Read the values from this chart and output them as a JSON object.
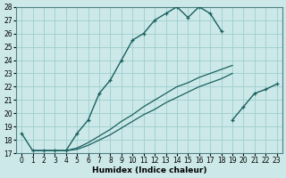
{
  "title": "",
  "xlabel": "Humidex (Indice chaleur)",
  "xlim": [
    -0.5,
    23.5
  ],
  "ylim": [
    17,
    28
  ],
  "background_color": "#cce8e8",
  "grid_color": "#9ecece",
  "line_color": "#1a6060",
  "lines": [
    {
      "x": [
        0,
        1,
        2,
        3,
        4,
        5,
        6,
        7,
        8,
        9,
        10,
        11,
        12,
        13,
        14,
        15,
        16,
        17,
        18
      ],
      "y": [
        18.5,
        17.2,
        17.2,
        17.2,
        17.2,
        18.5,
        19.5,
        21.5,
        22.5,
        24.0,
        25.5,
        26.0,
        27.0,
        27.5,
        28.0,
        27.2,
        28.0,
        27.5,
        26.2
      ],
      "marker": "+",
      "markersize": 3.5
    },
    {
      "x": [
        19,
        20,
        21,
        22,
        23
      ],
      "y": [
        19.5,
        20.5,
        21.5,
        21.8,
        22.2
      ],
      "marker": "+",
      "markersize": 3.5
    },
    {
      "x": [
        1,
        2,
        3,
        4,
        5,
        6,
        7,
        8,
        9,
        10,
        11,
        12,
        13,
        14,
        15,
        16,
        17,
        18,
        19
      ],
      "y": [
        17.2,
        17.2,
        17.2,
        17.2,
        17.3,
        17.6,
        18.0,
        18.4,
        18.9,
        19.4,
        19.9,
        20.3,
        20.8,
        21.2,
        21.6,
        22.0,
        22.3,
        22.6,
        23.0
      ],
      "marker": null,
      "markersize": 0
    },
    {
      "x": [
        1,
        2,
        3,
        4,
        5,
        6,
        7,
        8,
        9,
        10,
        11,
        12,
        13,
        14,
        15,
        16,
        17,
        18,
        19
      ],
      "y": [
        17.2,
        17.2,
        17.2,
        17.2,
        17.4,
        17.8,
        18.3,
        18.8,
        19.4,
        19.9,
        20.5,
        21.0,
        21.5,
        22.0,
        22.3,
        22.7,
        23.0,
        23.3,
        23.6
      ],
      "marker": null,
      "markersize": 0
    }
  ],
  "yticks": [
    17,
    18,
    19,
    20,
    21,
    22,
    23,
    24,
    25,
    26,
    27,
    28
  ],
  "xticks": [
    0,
    1,
    2,
    3,
    4,
    5,
    6,
    7,
    8,
    9,
    10,
    11,
    12,
    13,
    14,
    15,
    16,
    17,
    18,
    19,
    20,
    21,
    22,
    23
  ],
  "xlabel_fontsize": 6.5,
  "tick_fontsize": 5.5
}
